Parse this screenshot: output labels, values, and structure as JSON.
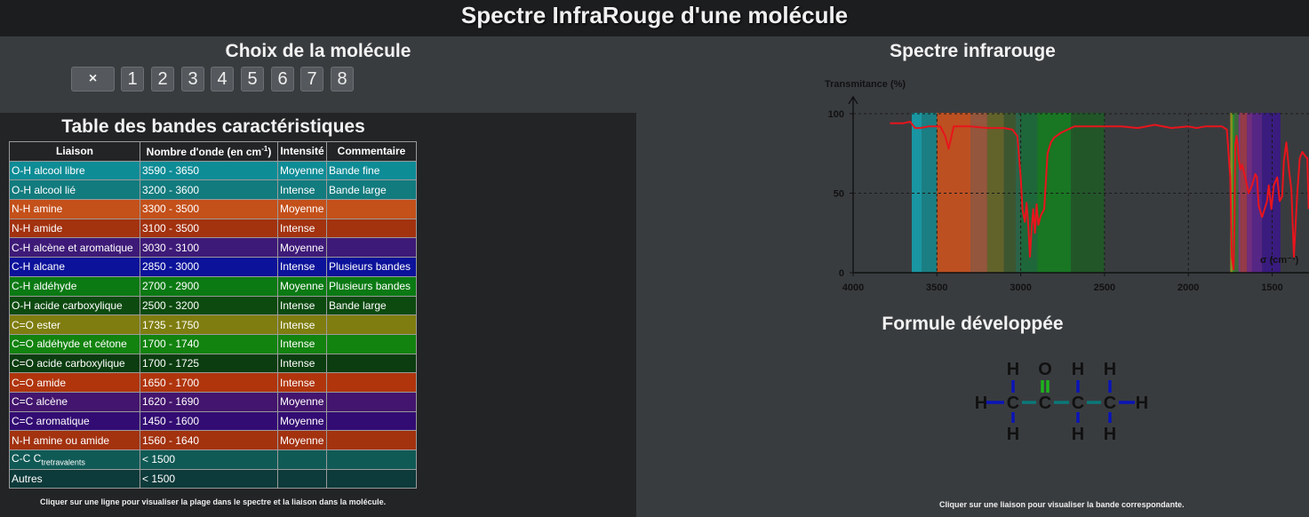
{
  "header": {
    "title": "Spectre InfraRouge d'une molécule"
  },
  "choice": {
    "title": "Choix de la molécule",
    "clear_label": "×",
    "buttons": [
      "1",
      "2",
      "3",
      "4",
      "5",
      "6",
      "7",
      "8"
    ]
  },
  "table": {
    "title": "Table des bandes caractéristiques",
    "headers": {
      "liaison": "Liaison",
      "nombre": "Nombre d'onde (en cm",
      "nombre_sup": "-1",
      "nombre_end": ")",
      "intensite": "Intensité",
      "commentaire": "Commentaire"
    },
    "rows": [
      {
        "liaison": "O-H alcool libre",
        "nombre": "3590 - 3650",
        "intensite": "Moyenne",
        "commentaire": "Bande fine",
        "color": "#0e8c96"
      },
      {
        "liaison": "O-H alcool lié",
        "nombre": "3200 - 3600",
        "intensite": "Intense",
        "commentaire": "Bande large",
        "color": "#127b7e"
      },
      {
        "liaison": "N-H amine",
        "nombre": "3300 - 3500",
        "intensite": "Moyenne",
        "commentaire": "",
        "color": "#c4501a"
      },
      {
        "liaison": "N-H amide",
        "nombre": "3100 - 3500",
        "intensite": "Intense",
        "commentaire": "",
        "color": "#a3320f"
      },
      {
        "liaison": "C-H alcène et aromatique",
        "nombre": "3030 - 3100",
        "intensite": "Moyenne",
        "commentaire": "",
        "color": "#3e1a78"
      },
      {
        "liaison": "C-H alcane",
        "nombre": "2850 - 3000",
        "intensite": "Intense",
        "commentaire": "Plusieurs bandes",
        "color": "#0c129a"
      },
      {
        "liaison": "C-H aldéhyde",
        "nombre": "2700 - 2900",
        "intensite": "Moyenne",
        "commentaire": "Plusieurs bandes",
        "color": "#0b7a13"
      },
      {
        "liaison": "O-H acide carboxylique",
        "nombre": "2500 - 3200",
        "intensite": "Intense",
        "commentaire": "Bande large",
        "color": "#0c4a0f"
      },
      {
        "liaison": "C=O ester",
        "nombre": "1735 - 1750",
        "intensite": "Intense",
        "commentaire": "",
        "color": "#7f7d0f"
      },
      {
        "liaison": "C=O aldéhyde et cétone",
        "nombre": "1700 - 1740",
        "intensite": "Intense",
        "commentaire": "",
        "color": "#12830f"
      },
      {
        "liaison": "C=O acide carboxylique",
        "nombre": "1700 - 1725",
        "intensite": "Intense",
        "commentaire": "",
        "color": "#0b3d10"
      },
      {
        "liaison": "C=O amide",
        "nombre": "1650 - 1700",
        "intensite": "Intense",
        "commentaire": "",
        "color": "#b0350d"
      },
      {
        "liaison": "C=C alcène",
        "nombre": "1620 - 1690",
        "intensite": "Moyenne",
        "commentaire": "",
        "color": "#43156e"
      },
      {
        "liaison": "C=C aromatique",
        "nombre": "1450 - 1600",
        "intensite": "Moyenne",
        "commentaire": "",
        "color": "#330c73"
      },
      {
        "liaison": "N-H amine ou amide",
        "nombre": "1560 - 1640",
        "intensite": "Moyenne",
        "commentaire": "",
        "color": "#a3320f"
      },
      {
        "liaison": "C-C  ",
        "liaison_sub": "tretravalents",
        "liaison_sub_prefix": "C",
        "nombre": "< 1500",
        "intensite": "",
        "commentaire": "",
        "color": "#105a56"
      },
      {
        "liaison": "Autres",
        "nombre": "< 1500",
        "intensite": "",
        "commentaire": "",
        "color": "#0d3a3a"
      }
    ],
    "hint": "Cliquer sur une ligne pour visualiser la plage dans le spectre et la liaison dans la molécule."
  },
  "spectrum": {
    "title": "Spectre infrarouge",
    "hint": "Cliquer sur une liaison pour visualiser la bande correspondante."
  },
  "chart_data": {
    "type": "line",
    "title": "",
    "ylabel": "Transmitance (%)",
    "xlabel": "σ (cm⁻¹)",
    "xlim": [
      4000,
      1280
    ],
    "ylim": [
      0,
      100
    ],
    "x_ticks": [
      "4000",
      "3500",
      "3000",
      "2500",
      "2000",
      "1500"
    ],
    "y_ticks": [
      "0",
      "50",
      "100"
    ],
    "grid": true,
    "bands": [
      {
        "from": 3650,
        "to": 3590,
        "color": "#14a6b4"
      },
      {
        "from": 3590,
        "to": 3500,
        "color": "#168a8e"
      },
      {
        "from": 3500,
        "to": 3300,
        "color": "#d4531c"
      },
      {
        "from": 3300,
        "to": 3200,
        "color": "#a55a3c"
      },
      {
        "from": 3200,
        "to": 3100,
        "color": "#6a6a28"
      },
      {
        "from": 3100,
        "to": 3030,
        "color": "#3e5a2e"
      },
      {
        "from": 3030,
        "to": 3000,
        "color": "#2a6a4a"
      },
      {
        "from": 3000,
        "to": 2900,
        "color": "#1a6e3a"
      },
      {
        "from": 2900,
        "to": 2700,
        "color": "#14801e"
      },
      {
        "from": 2700,
        "to": 2500,
        "color": "#1e5a26"
      },
      {
        "from": 1750,
        "to": 1735,
        "color": "#9a9a1a"
      },
      {
        "from": 1735,
        "to": 1725,
        "color": "#22a02a"
      },
      {
        "from": 1725,
        "to": 1700,
        "color": "#40703a"
      },
      {
        "from": 1700,
        "to": 1690,
        "color": "#8a3a8a"
      },
      {
        "from": 1690,
        "to": 1650,
        "color": "#a63a4a"
      },
      {
        "from": 1650,
        "to": 1620,
        "color": "#7a2a8a"
      },
      {
        "from": 1620,
        "to": 1560,
        "color": "#5a2290"
      },
      {
        "from": 1560,
        "to": 1450,
        "color": "#3a168a"
      }
    ],
    "series": [
      {
        "color": "#e8141c",
        "x": [
          3780,
          3700,
          3660,
          3630,
          3600,
          3550,
          3480,
          3450,
          3430,
          3400,
          3350,
          3300,
          3200,
          3100,
          3050,
          3020,
          3000,
          2990,
          2975,
          2965,
          2955,
          2945,
          2935,
          2925,
          2915,
          2905,
          2895,
          2880,
          2860,
          2840,
          2820,
          2800,
          2760,
          2720,
          2680,
          2600,
          2500,
          2400,
          2300,
          2200,
          2100,
          2000,
          1950,
          1900,
          1850,
          1800,
          1770,
          1750,
          1740,
          1730,
          1725,
          1720,
          1712,
          1705,
          1700,
          1690,
          1680,
          1660,
          1640,
          1620,
          1600,
          1590,
          1580,
          1560,
          1545,
          1530,
          1520,
          1505,
          1490,
          1470,
          1455,
          1440,
          1430,
          1415,
          1400,
          1385,
          1370,
          1350,
          1335,
          1320,
          1300,
          1290,
          1282
        ],
        "y": [
          94,
          94,
          95,
          91,
          91,
          92,
          92,
          86,
          78,
          92,
          92,
          92,
          91,
          91,
          90,
          86,
          60,
          40,
          32,
          44,
          30,
          10,
          28,
          40,
          25,
          43,
          30,
          36,
          40,
          75,
          82,
          85,
          88,
          90,
          92,
          92,
          92,
          92,
          91,
          93,
          91,
          92,
          91,
          92,
          92,
          92,
          90,
          60,
          10,
          2,
          30,
          80,
          86,
          80,
          72,
          65,
          68,
          60,
          50,
          55,
          62,
          60,
          42,
          35,
          40,
          45,
          55,
          40,
          55,
          60,
          45,
          48,
          70,
          82,
          65,
          52,
          10,
          50,
          72,
          76,
          73,
          72,
          40
        ]
      }
    ]
  },
  "formula": {
    "title": "Formule développée",
    "atoms": {
      "H": "H",
      "C": "C",
      "O": "O"
    }
  }
}
